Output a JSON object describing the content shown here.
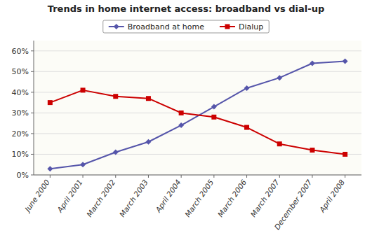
{
  "chart_data": {
    "type": "line",
    "title": "Trends in home internet access: broadband vs dial-up",
    "categories": [
      "June 2000",
      "April 2001",
      "March 2002",
      "March 2003",
      "April 2004",
      "March 2005",
      "March 2006",
      "March 2007",
      "December 2007",
      "April 2008"
    ],
    "series": [
      {
        "name": "Broadband at home",
        "color": "#5555aa",
        "marker": "diamond",
        "values": [
          3,
          5,
          11,
          16,
          24,
          33,
          42,
          47,
          54,
          55
        ]
      },
      {
        "name": "Dialup",
        "color": "#cc0000",
        "marker": "square",
        "values": [
          35,
          41,
          38,
          37,
          30,
          28,
          23,
          15,
          12,
          10
        ]
      }
    ],
    "ylim": [
      0,
      65
    ],
    "yticks": [
      {
        "value": 0,
        "label": "0%"
      },
      {
        "value": 10,
        "label": "10%"
      },
      {
        "value": 20,
        "label": "20%"
      },
      {
        "value": 30,
        "label": "30%"
      },
      {
        "value": 40,
        "label": "40%"
      },
      {
        "value": 50,
        "label": "50%"
      },
      {
        "value": 60,
        "label": "60%"
      }
    ],
    "grid": true,
    "legend": "top"
  }
}
